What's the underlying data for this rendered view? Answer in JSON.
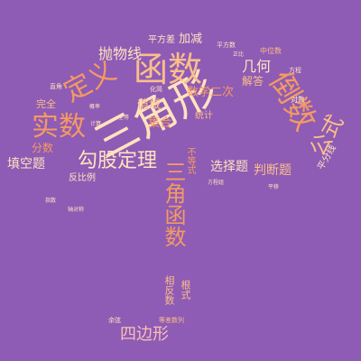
{
  "palette": {
    "background": "#8e5bb5",
    "cream": "#ffe3bf",
    "peach": "#fbbf8a",
    "orange": "#f49a62",
    "pink": "#f9c1b5"
  },
  "words": {
    "sanjiaoxing": "三角形",
    "hanshu": "函数",
    "shishu": "实数",
    "dingyi": "定义",
    "gougu": "勾股定理",
    "daoshu": "倒数",
    "gongshi": "公式",
    "sanjiaohanshu": "三角函数",
    "sibianxing": "四边形",
    "paowuxian": "抛物线",
    "jihe": "几何",
    "tiankongti": "填空题",
    "xuanzeti": "选择题",
    "panduanti": "判断题",
    "fenshu": "分数",
    "zhiyu": "值域",
    "jihe2": "集合",
    "shuxueerci": "数学二次",
    "jieda": "解答",
    "pingfangcha": "平方差",
    "jiajian": "加减",
    "wanquan": "完全",
    "fanbili": "反比例",
    "xiangfanshu": "相反数",
    "genshi": "根式",
    "budengshi": "不等式",
    "tongji": "统计",
    "pingfenxian": "平分线",
    "zhongweishu": "中位数",
    "pingfangshu": "平方数",
    "fangcheng": "方程",
    "duishu": "对数",
    "zhijiao": "直角",
    "huajian": "化简",
    "yuxian": "余弦",
    "dengcha": "等差数列",
    "quanfang": "全等",
    "gailu": "概率",
    "jisuan": "计算",
    "zhiyi": "正比",
    "pingyi": "平移",
    "fangxing": "方程组",
    "zhishu": "指数",
    "zhouduichen": "轴对称"
  }
}
